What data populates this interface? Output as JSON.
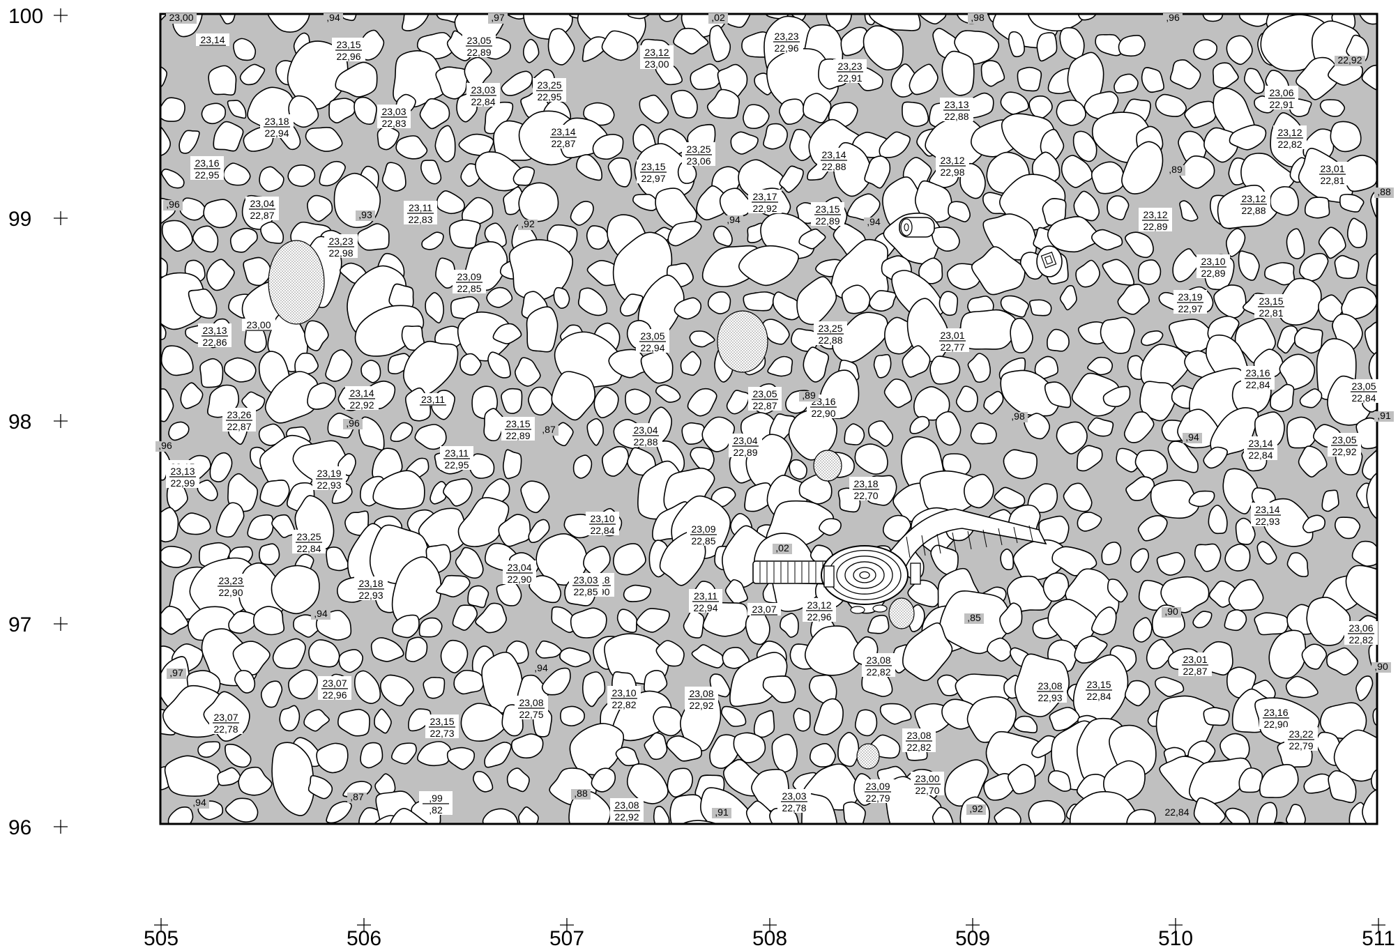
{
  "plan": {
    "y_ticks": [
      "100",
      "99",
      "98",
      "97",
      "96"
    ],
    "x_ticks": [
      "505",
      "506",
      "507",
      "508",
      "509",
      "510",
      "511"
    ],
    "levels": [
      {
        "top": "23,14",
        "bot": ""
      },
      {
        "top": "23,15",
        "bot": "22,96"
      },
      {
        "top": "23,05",
        "bot": "22,89"
      },
      {
        "top": "23,12",
        "bot": "23,00"
      },
      {
        "top": "23,23",
        "bot": "22,96"
      },
      {
        "top": "23,23",
        "bot": "22,91"
      },
      {
        "top": "23,03",
        "bot": "22,84"
      },
      {
        "top": "23,25",
        "bot": "22,95"
      },
      {
        "top": "23,03",
        "bot": "22,83"
      },
      {
        "top": "23,18",
        "bot": "22,94"
      },
      {
        "top": "23,14",
        "bot": "22,87"
      },
      {
        "top": "23,13",
        "bot": "22,88"
      },
      {
        "top": "23,06",
        "bot": "22,91"
      },
      {
        "top": "23,12",
        "bot": "22,82"
      },
      {
        "top": "23,16",
        "bot": "22,95"
      },
      {
        "top": "23,25",
        "bot": "23,06"
      },
      {
        "top": "23,14",
        "bot": "22,88"
      },
      {
        "top": "23,15",
        "bot": "22,97"
      },
      {
        "top": "23,12",
        "bot": "22,98"
      },
      {
        "top": "23,01",
        "bot": "22,81"
      },
      {
        "top": "23,04",
        "bot": "22,87"
      },
      {
        "top": "23,11",
        "bot": "22,83"
      },
      {
        "top": "23,17",
        "bot": "22,92"
      },
      {
        "top": "23,15",
        "bot": "22,89"
      },
      {
        "top": "23,12",
        "bot": "22,89"
      },
      {
        "top": "23,12",
        "bot": "22,88"
      },
      {
        "top": "23,23",
        "bot": "22,98"
      },
      {
        "top": "23,09",
        "bot": "22,85"
      },
      {
        "top": "23,10",
        "bot": "22,89"
      },
      {
        "top": "23,19",
        "bot": "22,97"
      },
      {
        "top": "23,15",
        "bot": "22,81"
      },
      {
        "top": "23,13",
        "bot": "22,86"
      },
      {
        "top": "23,00",
        "bot": ""
      },
      {
        "top": "23,05",
        "bot": "22,94"
      },
      {
        "top": "23,25",
        "bot": "22,88"
      },
      {
        "top": "23,01",
        "bot": "22,77"
      },
      {
        "top": "23,16",
        "bot": "22,84"
      },
      {
        "top": "23,14",
        "bot": "22,92"
      },
      {
        "top": "23,11",
        "bot": ""
      },
      {
        "top": "23,05",
        "bot": "22,87"
      },
      {
        "top": "23,16",
        "bot": "22,90"
      },
      {
        "top": "23,05",
        "bot": "22,84"
      },
      {
        "top": "23,26",
        "bot": "22,87"
      },
      {
        "top": "23,15",
        "bot": "22,89"
      },
      {
        "top": "23,04",
        "bot": "22,88"
      },
      {
        "top": "23,04",
        "bot": "22,89"
      },
      {
        "top": "23,14",
        "bot": "22,84"
      },
      {
        "top": "23,05",
        "bot": "22,92"
      },
      {
        "top": "23,15",
        "bot": "22,82"
      },
      {
        "top": "23,11",
        "bot": "22,95"
      },
      {
        "top": "23,13",
        "bot": "22,99"
      },
      {
        "top": "23,19",
        "bot": "22,93"
      },
      {
        "top": "23,18",
        "bot": "22,70"
      },
      {
        "top": "23,14",
        "bot": "22,93"
      },
      {
        "top": "23,10",
        "bot": "22,84"
      },
      {
        "top": "23,09",
        "bot": "22,85"
      },
      {
        "top": "23,25",
        "bot": "22,84"
      },
      {
        "top": "23,04",
        "bot": "22,90"
      },
      {
        "top": "23,18",
        "bot": "22,90"
      },
      {
        "top": "23,23",
        "bot": "22,90"
      },
      {
        "top": "23,18",
        "bot": "22,93"
      },
      {
        "top": "23,11",
        "bot": "22,94"
      },
      {
        "top": "23,07",
        "bot": ""
      },
      {
        "top": "23,12",
        "bot": "22,96"
      },
      {
        "top": "23,06",
        "bot": "22,82"
      },
      {
        "top": "23,01",
        "bot": "22,87"
      },
      {
        "top": "23,08",
        "bot": "22,82"
      },
      {
        "top": "23,07",
        "bot": "22,96"
      },
      {
        "top": "23,08",
        "bot": "22,93"
      },
      {
        "top": "23,15",
        "bot": "22,84"
      },
      {
        "top": "23,10",
        "bot": "22,82"
      },
      {
        "top": "23,08",
        "bot": "22,92"
      },
      {
        "top": "23,08",
        "bot": "22,75"
      },
      {
        "top": "23,16",
        "bot": "22,90"
      },
      {
        "top": "23,07",
        "bot": "22,78"
      },
      {
        "top": "23,15",
        "bot": "22,73"
      },
      {
        "top": "23,22",
        "bot": "22,79"
      },
      {
        "top": "23,08",
        "bot": "22,82"
      },
      {
        "top": "23,00",
        "bot": "22,70"
      },
      {
        "top": "23,09",
        "bot": "22,79"
      },
      {
        "top": ",99",
        "bot": ",82"
      },
      {
        "top": "23,08",
        "bot": "22,92"
      },
      {
        "top": "23,03",
        "bot": "22,78"
      },
      {
        "top": "23,03",
        "bot": "22,85"
      }
    ],
    "spots": [
      "23,00",
      ",94",
      ",97",
      ",02",
      ",98",
      ",96",
      "22,92",
      ",89",
      ",88",
      ",96",
      ",93",
      ",92",
      ",94",
      ",94",
      ",89",
      ",96",
      ",96",
      ",87",
      ",98",
      ",94",
      ",91",
      ",02",
      ",94",
      ",85",
      ",90",
      ",97",
      ",90",
      ",94",
      ",94",
      ",87",
      ",88",
      ",91",
      ",92",
      "22,84"
    ]
  }
}
